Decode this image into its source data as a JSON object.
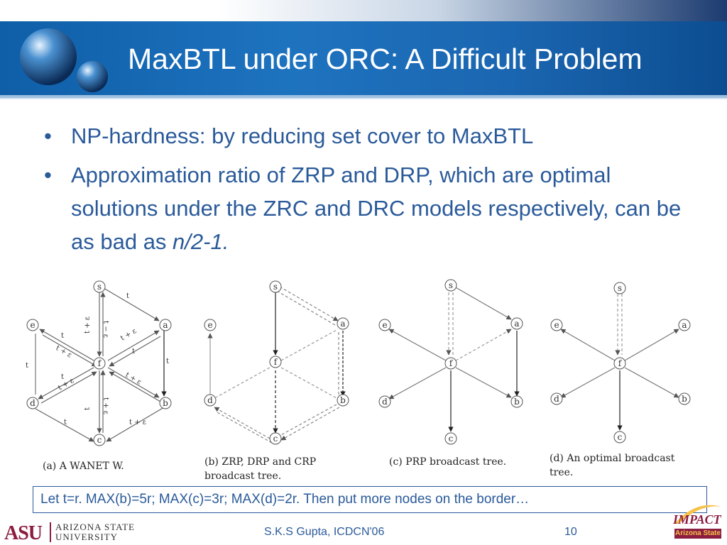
{
  "slide": {
    "title": "MaxBTL under ORC: A Difficult Problem",
    "bullets": [
      {
        "text": "NP-hardness: by reducing set cover to MaxBTL"
      },
      {
        "text": "Approximation ratio of ZRP and DRP, which are optimal solutions under the ZRC and DRC models respectively, can be as bad as ",
        "emph": "n/2-1."
      }
    ],
    "bullet_marker": "•",
    "note": "Let t=r. MAX(b)=5r; MAX(c)=3r; MAX(d)=2r. Then put more nodes on the border…"
  },
  "figure": {
    "node_labels": [
      "s",
      "a",
      "b",
      "c",
      "d",
      "e",
      "f"
    ],
    "edge_labels": [
      "t",
      "t − ε",
      "t + ε",
      "t",
      "t + ε",
      "t + ε",
      "t",
      "t + ε",
      "t",
      "t + ε",
      "t",
      "t",
      "t",
      "t + ε",
      "t",
      "t + ε"
    ],
    "captions": {
      "a": "(a)  A  WANET W.",
      "b": [
        "(b)   ZRP,   DRP   and   CRP",
        "broadcast  tree."
      ],
      "c": "(c)  PRP  broadcast tree.",
      "d": [
        "(d)   An    optimal   broadcast",
        "tree."
      ]
    }
  },
  "footer": {
    "university_mark": "ASU",
    "university_name_line1": "ARIZONA STATE",
    "university_name_line2": "UNIVERSITY",
    "center_text": "S.K.S Gupta, ICDCN'06",
    "page_number": "10",
    "impact_word": "IMPACT",
    "impact_sub": "Arizona State"
  },
  "colors": {
    "header_blue": "#1e73bf",
    "text_blue": "#2a5a9a",
    "asu_maroon": "#8c1d40",
    "asu_gold": "#f7c24a"
  }
}
